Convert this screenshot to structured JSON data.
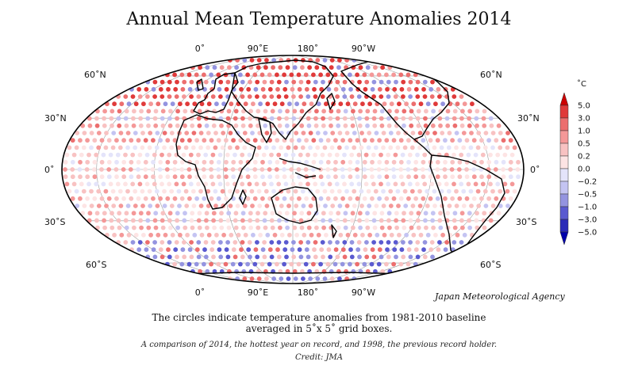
{
  "title": "Annual Mean Temperature Anomalies 2014",
  "lon_labels": [
    "0˚",
    "90˚E",
    "180˚",
    "90˚W"
  ],
  "lat_labels_left": [
    "60˚N",
    "30˚N",
    "0˚",
    "30˚S",
    "60˚S"
  ],
  "lat_labels_right": [
    "60˚N",
    "30˚N",
    "0˚",
    "30˚S",
    "60˚S"
  ],
  "colorbar": {
    "unit": "˚C",
    "ticks": [
      "5.0",
      "3.0",
      "1.0",
      "0.5",
      "0.2",
      "0.0",
      "−0.2",
      "−0.5",
      "−1.0",
      "−3.0",
      "−5.0"
    ],
    "colors": [
      "#cc0000",
      "#e03a3a",
      "#ec6e6e",
      "#f49898",
      "#f8c2c2",
      "#fde4e4",
      "#e4e4fa",
      "#c4c4f2",
      "#9494e0",
      "#5a5ad0",
      "#2a2ab8",
      "#0000aa"
    ]
  },
  "agency": "Japan Meteorological Agency",
  "description_line1": "The circles indicate temperature anomalies from 1981-2010 baseline",
  "description_line2": "averaged in 5˚x 5˚ grid boxes.",
  "caption": "A comparison of 2014, the hottest year on record, and 1998, the previous record holder.",
  "credit": "Credit: JMA"
}
